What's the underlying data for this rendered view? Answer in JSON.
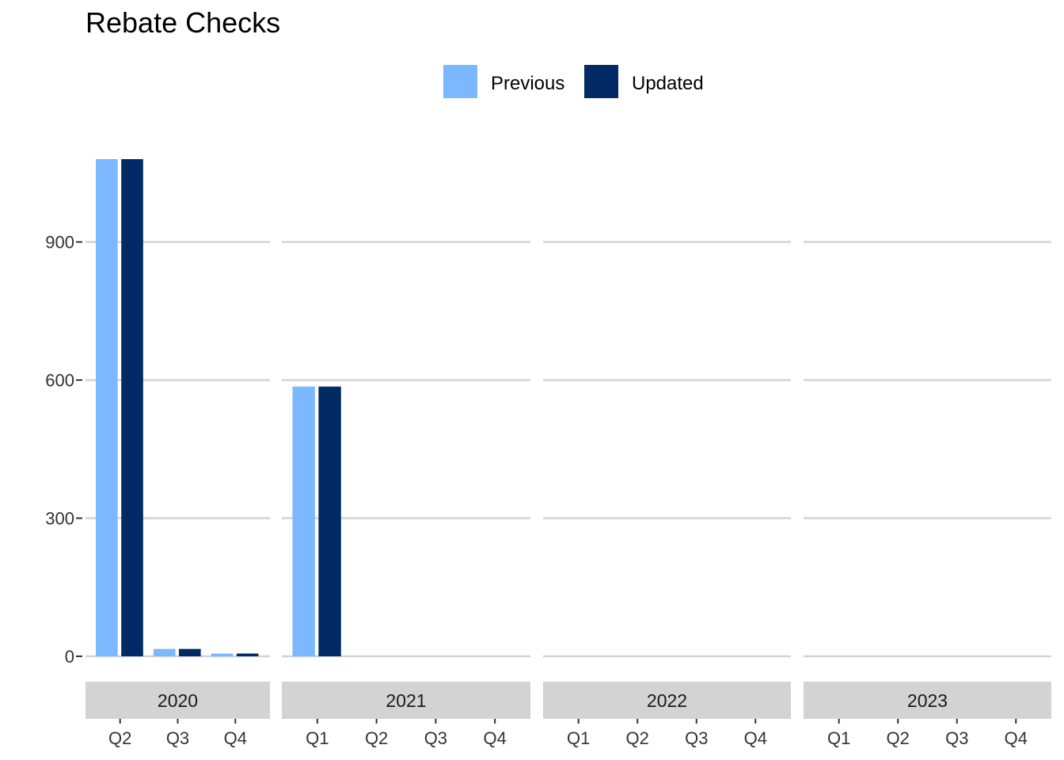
{
  "chart_data": {
    "type": "bar",
    "title": "Rebate Checks",
    "xlabel": "",
    "ylabel": "",
    "ylim": [
      0,
      1080
    ],
    "yticks": [
      0,
      300,
      600,
      900
    ],
    "grid": true,
    "legend_position": "top",
    "colors": {
      "Previous": "#7bb8ff",
      "Updated": "#032a65"
    },
    "facets": [
      {
        "label": "2020",
        "categories": [
          "Q2",
          "Q3",
          "Q4"
        ],
        "series": [
          {
            "name": "Previous",
            "values": [
              1080,
              16,
              6
            ]
          },
          {
            "name": "Updated",
            "values": [
              1080,
              16,
              6
            ]
          }
        ]
      },
      {
        "label": "2021",
        "categories": [
          "Q1",
          "Q2",
          "Q3",
          "Q4"
        ],
        "series": [
          {
            "name": "Previous",
            "values": [
              586,
              0,
              0,
              0
            ]
          },
          {
            "name": "Updated",
            "values": [
              586,
              0,
              0,
              0
            ]
          }
        ]
      },
      {
        "label": "2022",
        "categories": [
          "Q1",
          "Q2",
          "Q3",
          "Q4"
        ],
        "series": [
          {
            "name": "Previous",
            "values": [
              0,
              0,
              0,
              0
            ]
          },
          {
            "name": "Updated",
            "values": [
              0,
              0,
              0,
              0
            ]
          }
        ]
      },
      {
        "label": "2023",
        "categories": [
          "Q1",
          "Q2",
          "Q3",
          "Q4"
        ],
        "series": [
          {
            "name": "Previous",
            "values": [
              0,
              0,
              0,
              0
            ]
          },
          {
            "name": "Updated",
            "values": [
              0,
              0,
              0,
              0
            ]
          }
        ]
      }
    ]
  }
}
